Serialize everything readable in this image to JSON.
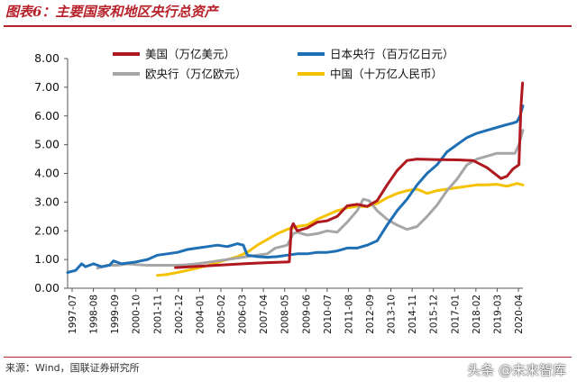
{
  "figure": {
    "title": "图表6：主要国家和地区央行总资产",
    "source": "来源：Wind，国联证券研究所",
    "watermark": "头条 @未来智库"
  },
  "chart_data": {
    "type": "line",
    "x_ticks": [
      "1997-07",
      "1998-08",
      "1999-09",
      "2000-10",
      "2001-11",
      "2002-12",
      "2004-01",
      "2005-02",
      "2006-03",
      "2007-04",
      "2008-05",
      "2009-06",
      "2010-07",
      "2011-08",
      "2012-09",
      "2013-10",
      "2014-11",
      "2015-12",
      "2017-01",
      "2018-02",
      "2019-03",
      "2020-04"
    ],
    "y_ticks": [
      "0.00",
      "1.00",
      "2.00",
      "3.00",
      "4.00",
      "5.00",
      "6.00",
      "7.00",
      "8.00"
    ],
    "ylim": [
      0,
      8
    ],
    "xlim": [
      1997.5,
      2020.3
    ],
    "legend_position": "top",
    "series": [
      {
        "name": "美国（万亿美元）",
        "color": "#b0181f",
        "points": [
          [
            2002.9,
            0.72
          ],
          [
            2003.5,
            0.74
          ],
          [
            2004.5,
            0.78
          ],
          [
            2005.5,
            0.82
          ],
          [
            2006.5,
            0.86
          ],
          [
            2007.5,
            0.89
          ],
          [
            2008.6,
            0.92
          ],
          [
            2008.7,
            2.1
          ],
          [
            2008.8,
            2.25
          ],
          [
            2009.0,
            2.0
          ],
          [
            2009.5,
            2.1
          ],
          [
            2010.0,
            2.3
          ],
          [
            2010.5,
            2.35
          ],
          [
            2011.0,
            2.5
          ],
          [
            2011.5,
            2.87
          ],
          [
            2012.0,
            2.92
          ],
          [
            2012.5,
            2.85
          ],
          [
            2013.0,
            3.05
          ],
          [
            2013.5,
            3.6
          ],
          [
            2014.0,
            4.1
          ],
          [
            2014.5,
            4.45
          ],
          [
            2015.0,
            4.5
          ],
          [
            2016.0,
            4.48
          ],
          [
            2017.0,
            4.47
          ],
          [
            2017.8,
            4.45
          ],
          [
            2018.5,
            4.2
          ],
          [
            2019.2,
            3.82
          ],
          [
            2019.5,
            3.9
          ],
          [
            2019.8,
            4.15
          ],
          [
            2020.1,
            4.3
          ],
          [
            2020.2,
            6.3
          ],
          [
            2020.28,
            7.15
          ]
        ]
      },
      {
        "name": "日本央行（百万亿日元）",
        "color": "#1f6fb5",
        "points": [
          [
            1997.5,
            0.55
          ],
          [
            1997.9,
            0.62
          ],
          [
            1998.2,
            0.85
          ],
          [
            1998.4,
            0.75
          ],
          [
            1998.8,
            0.85
          ],
          [
            1999.2,
            0.75
          ],
          [
            1999.6,
            0.8
          ],
          [
            1999.8,
            0.95
          ],
          [
            2000.2,
            0.85
          ],
          [
            2000.8,
            0.9
          ],
          [
            2001.5,
            1.0
          ],
          [
            2002.0,
            1.15
          ],
          [
            2002.5,
            1.2
          ],
          [
            2003.0,
            1.25
          ],
          [
            2003.5,
            1.35
          ],
          [
            2004.0,
            1.4
          ],
          [
            2004.5,
            1.45
          ],
          [
            2005.0,
            1.5
          ],
          [
            2005.5,
            1.45
          ],
          [
            2006.0,
            1.55
          ],
          [
            2006.3,
            1.5
          ],
          [
            2006.5,
            1.15
          ],
          [
            2007.0,
            1.1
          ],
          [
            2007.5,
            1.08
          ],
          [
            2008.0,
            1.1
          ],
          [
            2008.5,
            1.15
          ],
          [
            2009.0,
            1.2
          ],
          [
            2009.5,
            1.2
          ],
          [
            2010.0,
            1.25
          ],
          [
            2010.5,
            1.25
          ],
          [
            2011.0,
            1.3
          ],
          [
            2011.5,
            1.4
          ],
          [
            2012.0,
            1.4
          ],
          [
            2012.5,
            1.5
          ],
          [
            2013.0,
            1.65
          ],
          [
            2013.5,
            2.2
          ],
          [
            2014.0,
            2.7
          ],
          [
            2014.5,
            3.1
          ],
          [
            2015.0,
            3.6
          ],
          [
            2015.5,
            4.0
          ],
          [
            2016.0,
            4.3
          ],
          [
            2016.5,
            4.75
          ],
          [
            2017.0,
            5.0
          ],
          [
            2017.5,
            5.25
          ],
          [
            2018.0,
            5.4
          ],
          [
            2018.5,
            5.5
          ],
          [
            2019.0,
            5.6
          ],
          [
            2019.5,
            5.7
          ],
          [
            2019.8,
            5.75
          ],
          [
            2020.0,
            5.8
          ],
          [
            2020.15,
            6.0
          ],
          [
            2020.3,
            6.35
          ]
        ]
      },
      {
        "name": "欧央行（万亿欧元）",
        "color": "#a6a6a6",
        "points": [
          [
            1999.0,
            0.7
          ],
          [
            1999.5,
            0.8
          ],
          [
            2000.0,
            0.8
          ],
          [
            2000.5,
            0.85
          ],
          [
            2001.0,
            0.82
          ],
          [
            2001.5,
            0.8
          ],
          [
            2002.0,
            0.8
          ],
          [
            2002.5,
            0.8
          ],
          [
            2003.0,
            0.8
          ],
          [
            2003.5,
            0.82
          ],
          [
            2004.0,
            0.85
          ],
          [
            2004.5,
            0.9
          ],
          [
            2005.0,
            0.95
          ],
          [
            2005.5,
            1.0
          ],
          [
            2006.0,
            1.05
          ],
          [
            2006.5,
            1.1
          ],
          [
            2007.0,
            1.15
          ],
          [
            2007.5,
            1.2
          ],
          [
            2007.9,
            1.4
          ],
          [
            2008.5,
            1.5
          ],
          [
            2008.8,
            1.9
          ],
          [
            2009.0,
            1.95
          ],
          [
            2009.5,
            1.85
          ],
          [
            2010.0,
            1.9
          ],
          [
            2010.5,
            2.0
          ],
          [
            2011.0,
            1.95
          ],
          [
            2011.5,
            2.3
          ],
          [
            2012.0,
            2.7
          ],
          [
            2012.3,
            3.1
          ],
          [
            2012.6,
            3.05
          ],
          [
            2013.0,
            2.7
          ],
          [
            2013.5,
            2.4
          ],
          [
            2014.0,
            2.2
          ],
          [
            2014.5,
            2.05
          ],
          [
            2015.0,
            2.15
          ],
          [
            2015.5,
            2.5
          ],
          [
            2016.0,
            2.9
          ],
          [
            2016.5,
            3.4
          ],
          [
            2017.0,
            3.8
          ],
          [
            2017.5,
            4.3
          ],
          [
            2018.0,
            4.5
          ],
          [
            2018.5,
            4.6
          ],
          [
            2019.0,
            4.7
          ],
          [
            2019.5,
            4.7
          ],
          [
            2019.9,
            4.7
          ],
          [
            2020.1,
            5.0
          ],
          [
            2020.3,
            5.5
          ]
        ]
      },
      {
        "name": "中国（十万亿人民币）",
        "color": "#f5c200",
        "points": [
          [
            2002.0,
            0.45
          ],
          [
            2002.5,
            0.48
          ],
          [
            2003.0,
            0.55
          ],
          [
            2003.5,
            0.62
          ],
          [
            2004.0,
            0.7
          ],
          [
            2004.5,
            0.78
          ],
          [
            2005.0,
            0.9
          ],
          [
            2005.5,
            1.0
          ],
          [
            2006.0,
            1.1
          ],
          [
            2006.5,
            1.25
          ],
          [
            2007.0,
            1.5
          ],
          [
            2007.5,
            1.7
          ],
          [
            2008.0,
            1.9
          ],
          [
            2008.5,
            2.05
          ],
          [
            2009.0,
            2.15
          ],
          [
            2009.5,
            2.2
          ],
          [
            2010.0,
            2.4
          ],
          [
            2010.5,
            2.55
          ],
          [
            2011.0,
            2.7
          ],
          [
            2011.5,
            2.8
          ],
          [
            2012.0,
            2.85
          ],
          [
            2012.5,
            2.85
          ],
          [
            2013.0,
            2.95
          ],
          [
            2013.5,
            3.15
          ],
          [
            2014.0,
            3.3
          ],
          [
            2014.5,
            3.4
          ],
          [
            2015.0,
            3.45
          ],
          [
            2015.5,
            3.3
          ],
          [
            2016.0,
            3.4
          ],
          [
            2016.5,
            3.45
          ],
          [
            2017.0,
            3.5
          ],
          [
            2017.5,
            3.55
          ],
          [
            2018.0,
            3.6
          ],
          [
            2018.5,
            3.6
          ],
          [
            2019.0,
            3.62
          ],
          [
            2019.5,
            3.55
          ],
          [
            2020.0,
            3.65
          ],
          [
            2020.3,
            3.6
          ]
        ]
      }
    ]
  }
}
